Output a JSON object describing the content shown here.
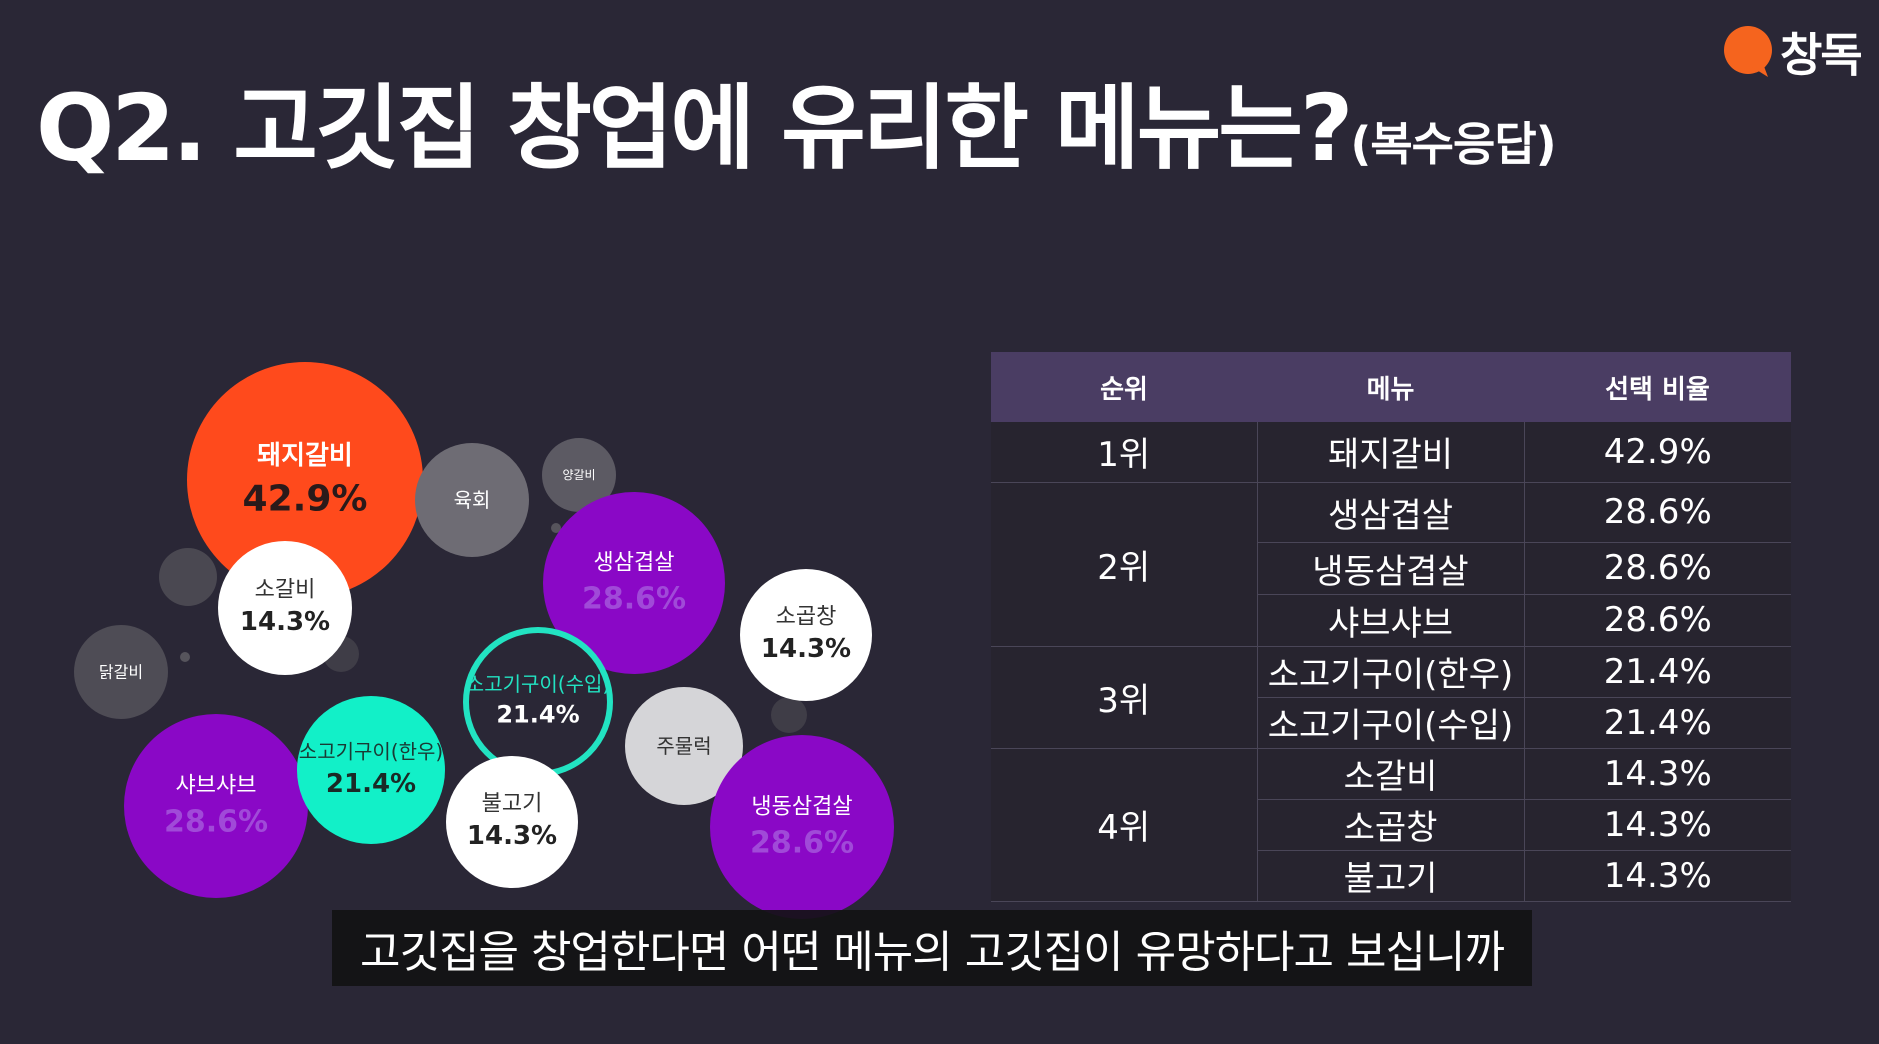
{
  "logo": {
    "text": "창독",
    "colors": {
      "icon": "#f5641e"
    }
  },
  "title": {
    "main": "Q2. 고깃집 창업에 유리한 메뉴는?",
    "sub": "(복수응답)"
  },
  "chart_data": {
    "type": "bubble",
    "items": [
      {
        "name": "돼지갈비",
        "value": 42.9,
        "label": "42.9%",
        "fill": "#ff4a1c",
        "ring": false,
        "text_color": "#ffffff",
        "value_color": "#2a1a1a"
      },
      {
        "name": "육회",
        "value": null,
        "label": "",
        "fill": "#6e6c74",
        "ring": false,
        "text_color": "#ffffff",
        "value_color": "#ffffff"
      },
      {
        "name": "양갈비",
        "value": null,
        "label": "",
        "fill": "#5c5a63",
        "ring": false,
        "text_color": "#ffffff",
        "value_color": "#ffffff"
      },
      {
        "name": "생삼겹살",
        "value": 28.6,
        "label": "28.6%",
        "fill": "#8a08c6",
        "ring": false,
        "text_color": "#ffffff",
        "value_color": "#a04ad8"
      },
      {
        "name": "소갈비",
        "value": 14.3,
        "label": "14.3%",
        "fill": "#ffffff",
        "ring": false,
        "text_color": "#333333",
        "value_color": "#222222"
      },
      {
        "name": "닭갈비",
        "value": null,
        "label": "",
        "fill": "#4e4c55",
        "ring": false,
        "text_color": "#ffffff",
        "value_color": "#ffffff"
      },
      {
        "name": "소곱창",
        "value": 14.3,
        "label": "14.3%",
        "fill": "#ffffff",
        "ring": false,
        "text_color": "#333333",
        "value_color": "#222222"
      },
      {
        "name": "소고기구이(수입)",
        "value": 21.4,
        "label": "21.4%",
        "fill": "#2a2736",
        "ring": true,
        "text_color": "#22e3c2",
        "value_color": "#ffffff",
        "ring_color": "#22e3c2"
      },
      {
        "name": "주물럭",
        "value": null,
        "label": "",
        "fill": "#d5d5d8",
        "ring": false,
        "text_color": "#333333",
        "value_color": "#333333"
      },
      {
        "name": "샤브샤브",
        "value": 28.6,
        "label": "28.6%",
        "fill": "#8a08c6",
        "ring": false,
        "text_color": "#ffffff",
        "value_color": "#a04ad8"
      },
      {
        "name": "소고기구이(한우)",
        "value": 21.4,
        "label": "21.4%",
        "fill": "#12f0c8",
        "ring": false,
        "text_color": "#1a3a34",
        "value_color": "#1a2a26"
      },
      {
        "name": "불고기",
        "value": 14.3,
        "label": "14.3%",
        "fill": "#ffffff",
        "ring": false,
        "text_color": "#333333",
        "value_color": "#222222"
      },
      {
        "name": "냉동삼겹살",
        "value": 28.6,
        "label": "28.6%",
        "fill": "#8a08c6",
        "ring": false,
        "text_color": "#ffffff",
        "value_color": "#a04ad8"
      }
    ],
    "decor_colors": [
      "#4a4851",
      "#3f3d47",
      "#56545c"
    ]
  },
  "table": {
    "headers": [
      "순위",
      "메뉴",
      "선택 비율"
    ],
    "rows": [
      {
        "rank": "1위",
        "menu": "돼지갈비",
        "ratio": "42.9%"
      },
      {
        "rank": "2위",
        "menu": "생삼겹살",
        "ratio": "28.6%"
      },
      {
        "rank": "",
        "menu": "냉동삼겹살",
        "ratio": "28.6%"
      },
      {
        "rank": "",
        "menu": "샤브샤브",
        "ratio": "28.6%"
      },
      {
        "rank": "3위",
        "menu": "소고기구이(한우)",
        "ratio": "21.4%"
      },
      {
        "rank": "",
        "menu": "소고기구이(수입)",
        "ratio": "21.4%"
      },
      {
        "rank": "4위",
        "menu": "소갈비",
        "ratio": "14.3%"
      },
      {
        "rank": "",
        "menu": "소곱창",
        "ratio": "14.3%"
      },
      {
        "rank": "",
        "menu": "불고기",
        "ratio": "14.3%"
      }
    ]
  },
  "caption": "고깃집을 창업한다면 어떤 메뉴의 고깃집이 유망하다고 보십니까"
}
